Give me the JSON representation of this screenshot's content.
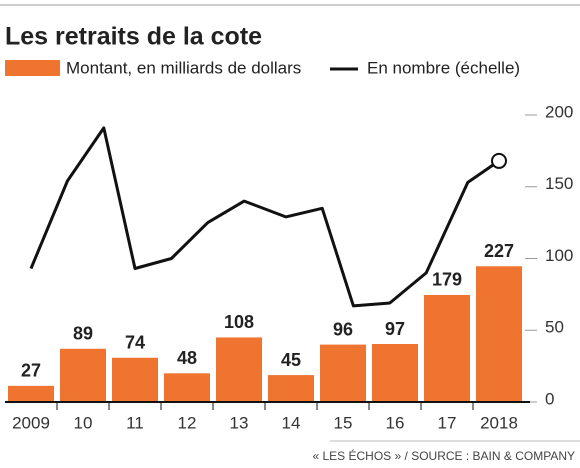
{
  "chart_data": {
    "type": "bar-line",
    "title": "Les retraits de la cote",
    "source": "« LES ÉCHOS » / SOURCE : BAIN & COMPANY",
    "categories": [
      "2009",
      "10",
      "11",
      "12",
      "13",
      "14",
      "15",
      "16",
      "17",
      "2018"
    ],
    "series": [
      {
        "name": "Montant, en milliards de dollars",
        "type": "bar",
        "color": "#ee7430",
        "values": [
          27,
          89,
          74,
          48,
          108,
          45,
          96,
          97,
          179,
          227
        ]
      },
      {
        "name": "En nombre (échelle)",
        "type": "line",
        "color": "#111111",
        "axis": "y2",
        "x": [
          2009,
          2009.7,
          2010.4,
          2011,
          2011.7,
          2012.4,
          2013.1,
          2013.9,
          2014.6,
          2015.2,
          2015.9,
          2016.6,
          2017.4,
          2018
        ],
        "values": [
          93,
          154,
          191,
          93,
          100,
          125,
          140,
          129,
          135,
          67,
          69,
          90,
          153,
          168
        ]
      }
    ],
    "ylim": [
      0,
      480
    ],
    "y2lim": [
      0,
      200
    ],
    "y2ticks": [
      0,
      50,
      100,
      150,
      200
    ]
  }
}
